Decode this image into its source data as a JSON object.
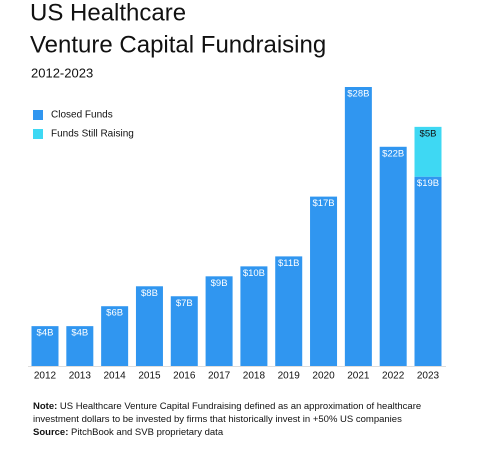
{
  "chart_data": {
    "type": "stacked-bar",
    "title": [
      "US Healthcare",
      "Venture Capital Fundraising"
    ],
    "subtitle": "2012-2023",
    "categories": [
      "2012",
      "2013",
      "2014",
      "2015",
      "2016",
      "2017",
      "2018",
      "2019",
      "2020",
      "2021",
      "2022",
      "2023"
    ],
    "series": [
      {
        "name": "Closed Funds",
        "color": "#3096f0",
        "values": [
          4,
          4,
          6,
          8,
          7,
          9,
          10,
          11,
          17,
          28,
          22,
          19
        ],
        "value_labels": [
          "$4B",
          "$4B",
          "$6B",
          "$8B",
          "$7B",
          "$9B",
          "$10B",
          "$11B",
          "$17B",
          "$28B",
          "$22B",
          "$19B"
        ]
      },
      {
        "name": "Funds Still Raising",
        "color": "#3ed8f3",
        "values": [
          null,
          null,
          null,
          null,
          null,
          null,
          null,
          null,
          null,
          null,
          null,
          5
        ],
        "value_labels": [
          null,
          null,
          null,
          null,
          null,
          null,
          null,
          null,
          null,
          null,
          null,
          "$5B"
        ]
      }
    ],
    "legend": "upper-left",
    "note": {
      "label": "Note:",
      "text": "US Healthcare Venture Capital Fundraising defined as an approximation of healthcare investment dollars to be invested by firms that historically invest in +50% US companies"
    },
    "source": {
      "label": "Source:",
      "text": "PitchBook and SVB proprietary data"
    }
  }
}
